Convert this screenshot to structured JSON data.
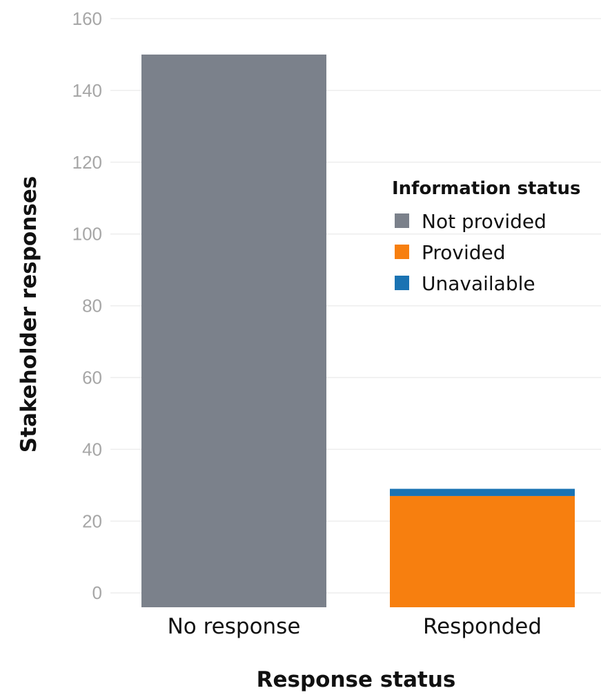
{
  "chart_data": {
    "type": "bar",
    "stacked": true,
    "categories": [
      "No response",
      "Responded"
    ],
    "series": [
      {
        "name": "Not provided",
        "values": [
          154,
          0
        ],
        "color": "#7b818b"
      },
      {
        "name": "Provided",
        "values": [
          0,
          31
        ],
        "color": "#f77f0f"
      },
      {
        "name": "Unavailable",
        "values": [
          0,
          2
        ],
        "color": "#1a73b3"
      }
    ],
    "xlabel": "Response status",
    "ylabel": "Stakeholder responses",
    "ylim": [
      -4,
      160
    ],
    "yticks": [
      0,
      20,
      40,
      60,
      80,
      100,
      120,
      140,
      160
    ],
    "grid": true,
    "legend": {
      "title": "Information status",
      "position": "right"
    }
  }
}
